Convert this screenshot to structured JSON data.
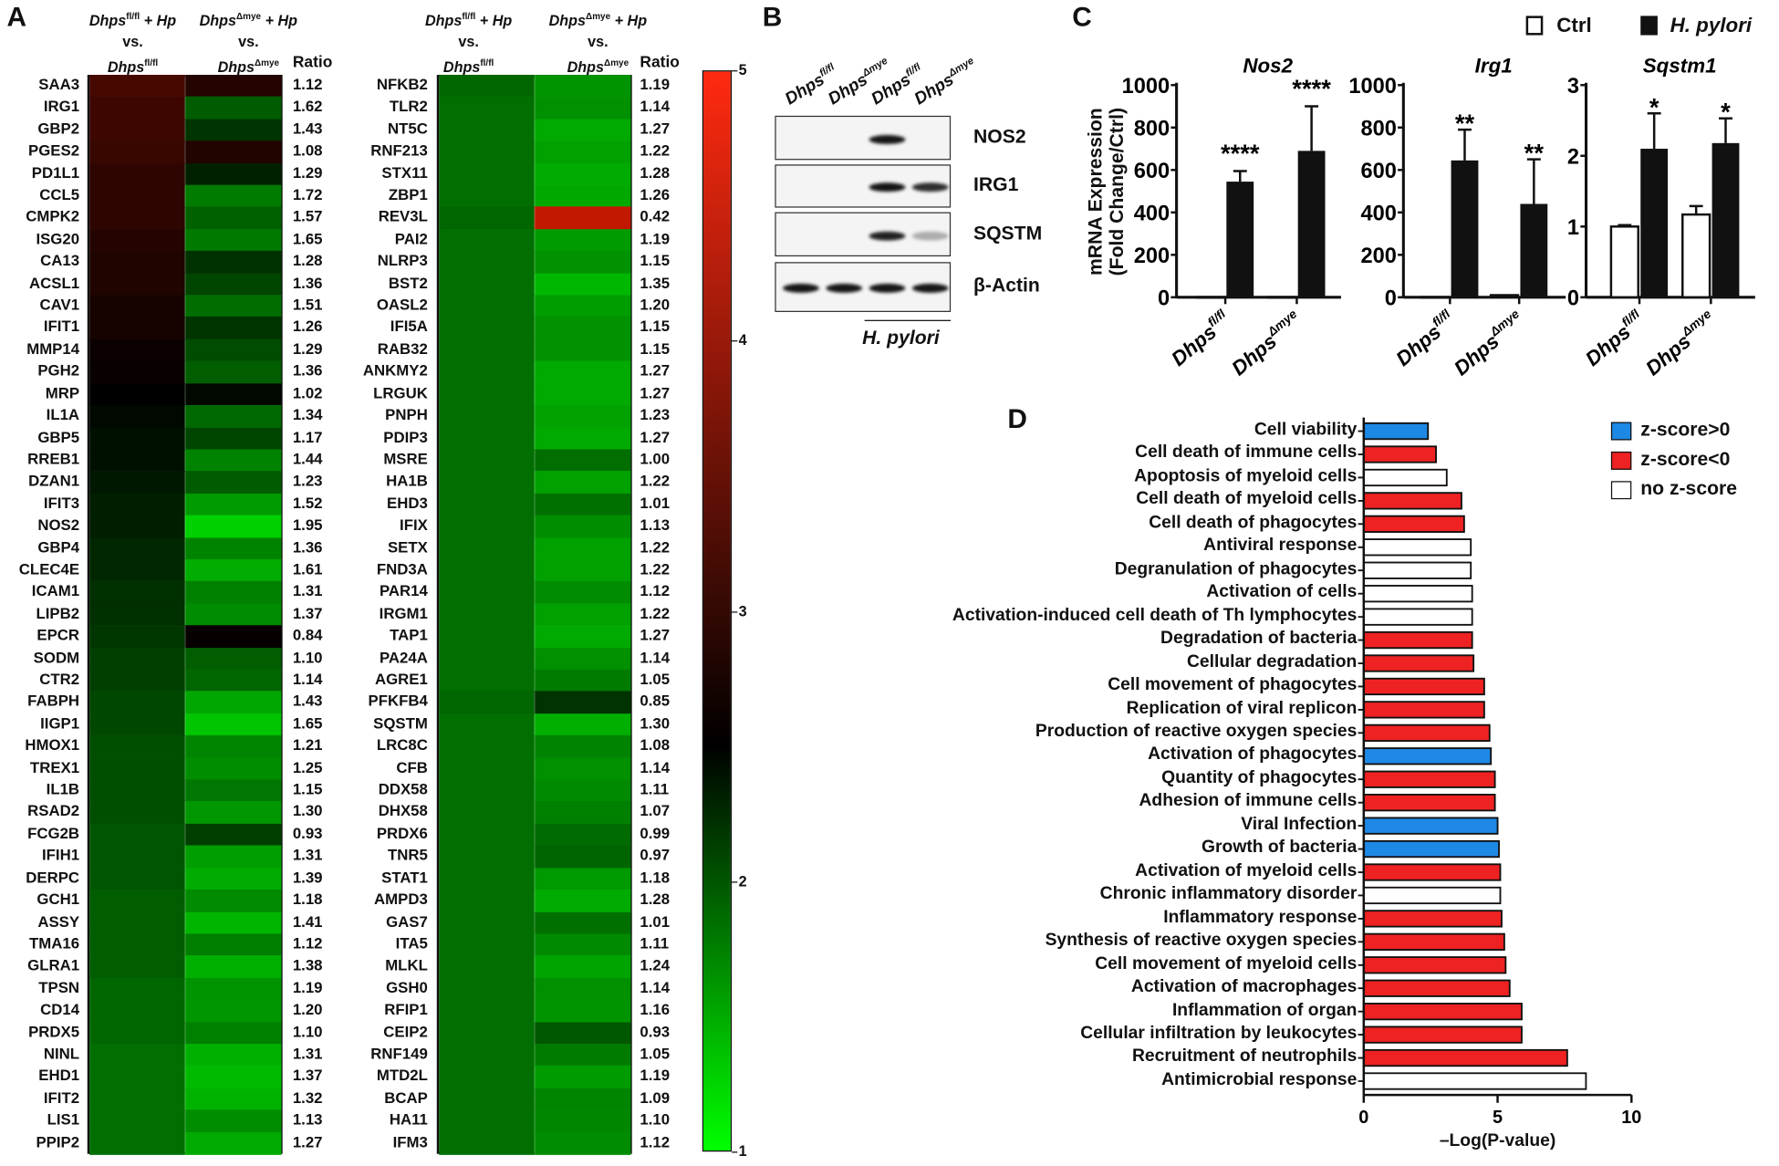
{
  "chart_data": [
    {
      "panel": "A",
      "type": "heatmap",
      "column_headers": [
        {
          "line1_main": "Dhps",
          "line1_sup": "fl/fl",
          "line1_tail": " + Hp",
          "line2": "vs.",
          "line3_main": "Dhps",
          "line3_sup": "fl/fl"
        },
        {
          "line1_main": "Dhps",
          "line1_sup": "Δmye",
          "line1_tail": " + Hp",
          "line2": "vs.",
          "line3_main": "Dhps",
          "line3_sup": "Δmye"
        }
      ],
      "ratio_header": "Ratio",
      "note": "column 2 value = column 1 value / ratio",
      "colorbar": {
        "min": 1,
        "max": 5,
        "ticks": [
          "5",
          "4",
          "3",
          "2",
          "1"
        ],
        "low_color": "#00ff00",
        "mid_color": "#000000",
        "high_color": "#ff2a10",
        "mid_value": 2.5
      },
      "left": {
        "genes": [
          "SAA3",
          "IRG1",
          "GBP2",
          "PGES2",
          "PD1L1",
          "CCL5",
          "CMPK2",
          "ISG20",
          "CA13",
          "ACSL1",
          "CAV1",
          "IFIT1",
          "MMP14",
          "PGH2",
          "MRP",
          "IL1A",
          "GBP5",
          "RREB1",
          "DZAN1",
          "IFIT3",
          "NOS2",
          "GBP4",
          "CLEC4E",
          "ICAM1",
          "LIPB2",
          "EPCR",
          "SODM",
          "CTR2",
          "FABPH",
          "IIGP1",
          "HMOX1",
          "TREX1",
          "IL1B",
          "RSAD2",
          "FCG2B",
          "IFIH1",
          "DERPC",
          "GCH1",
          "ASSY",
          "TMA16",
          "GLRA1",
          "TPSN",
          "CD14",
          "PRDX5",
          "NINL",
          "EHD1",
          "IFIT2",
          "LIS1",
          "PPIP2"
        ],
        "ratios": [
          "1.12",
          "1.62",
          "1.43",
          "1.08",
          "1.29",
          "1.72",
          "1.57",
          "1.65",
          "1.28",
          "1.36",
          "1.51",
          "1.26",
          "1.29",
          "1.36",
          "1.02",
          "1.34",
          "1.17",
          "1.44",
          "1.23",
          "1.52",
          "1.95",
          "1.36",
          "1.61",
          "1.31",
          "1.37",
          "0.84",
          "1.10",
          "1.14",
          "1.43",
          "1.65",
          "1.21",
          "1.25",
          "1.15",
          "1.30",
          "0.93",
          "1.31",
          "1.39",
          "1.18",
          "1.41",
          "1.12",
          "1.38",
          "1.19",
          "1.20",
          "1.10",
          "1.31",
          "1.37",
          "1.32",
          "1.13",
          "1.27"
        ],
        "col1_values": [
          3.2,
          3.1,
          3.1,
          3.05,
          2.95,
          2.95,
          2.95,
          2.85,
          2.8,
          2.8,
          2.72,
          2.72,
          2.6,
          2.58,
          2.5,
          2.45,
          2.4,
          2.4,
          2.35,
          2.3,
          2.3,
          2.25,
          2.25,
          2.2,
          2.2,
          2.15,
          2.1,
          2.1,
          2.05,
          2.05,
          2.0,
          2.0,
          2.0,
          2.0,
          1.95,
          1.95,
          1.95,
          1.9,
          1.9,
          1.9,
          1.9,
          1.85,
          1.85,
          1.85,
          1.8,
          1.8,
          1.8,
          1.8,
          1.8
        ]
      },
      "right": {
        "genes": [
          "NFKB2",
          "TLR2",
          "NT5C",
          "RNF213",
          "STX11",
          "ZBP1",
          "REV3L",
          "PAI2",
          "NLRP3",
          "BST2",
          "OASL2",
          "IFI5A",
          "RAB32",
          "ANKMY2",
          "LRGUK",
          "PNPH",
          "PDIP3",
          "MSRE",
          "HA1B",
          "EHD3",
          "IFIX",
          "SETX",
          "FND3A",
          "PAR14",
          "IRGM1",
          "TAP1",
          "PA24A",
          "AGRE1",
          "PFKFB4",
          "SQSTM",
          "LRC8C",
          "CFB",
          "DDX58",
          "DHX58",
          "PRDX6",
          "TNR5",
          "STAT1",
          "AMPD3",
          "GAS7",
          "ITA5",
          "MLKL",
          "GSH0",
          "RFIP1",
          "CEIP2",
          "RNF149",
          "MTD2L",
          "BCAP",
          "HA11",
          "IFM3"
        ],
        "ratios": [
          "1.19",
          "1.14",
          "1.27",
          "1.22",
          "1.28",
          "1.26",
          "0.42",
          "1.19",
          "1.15",
          "1.35",
          "1.20",
          "1.15",
          "1.15",
          "1.27",
          "1.27",
          "1.23",
          "1.27",
          "1.00",
          "1.22",
          "1.01",
          "1.13",
          "1.22",
          "1.22",
          "1.12",
          "1.22",
          "1.27",
          "1.14",
          "1.05",
          "0.85",
          "1.30",
          "1.08",
          "1.14",
          "1.11",
          "1.07",
          "0.99",
          "0.97",
          "1.18",
          "1.28",
          "1.01",
          "1.11",
          "1.24",
          "1.14",
          "1.16",
          "0.93",
          "1.05",
          "1.19",
          "1.09",
          "1.10",
          "1.12"
        ],
        "col1_values": [
          1.85,
          1.8,
          1.8,
          1.8,
          1.8,
          1.8,
          1.85,
          1.8,
          1.8,
          1.8,
          1.8,
          1.8,
          1.8,
          1.8,
          1.8,
          1.8,
          1.8,
          1.8,
          1.8,
          1.8,
          1.8,
          1.8,
          1.8,
          1.8,
          1.8,
          1.8,
          1.8,
          1.8,
          1.85,
          1.8,
          1.8,
          1.8,
          1.8,
          1.8,
          1.8,
          1.8,
          1.8,
          1.8,
          1.8,
          1.8,
          1.8,
          1.8,
          1.8,
          1.8,
          1.8,
          1.8,
          1.8,
          1.8,
          1.8
        ]
      }
    },
    {
      "panel": "B",
      "type": "western_blot",
      "lanes": [
        {
          "main": "Dhps",
          "sup": "fl/fl"
        },
        {
          "main": "Dhps",
          "sup": "Δmye"
        },
        {
          "main": "Dhps",
          "sup": "fl/fl"
        },
        {
          "main": "Dhps",
          "sup": "Δmye"
        }
      ],
      "treatment_label": "H. pylori",
      "rows": [
        {
          "label": "NOS2",
          "intensities": [
            0,
            0,
            0.95,
            0
          ]
        },
        {
          "label": "IRG1",
          "intensities": [
            0,
            0,
            0.95,
            0.85
          ]
        },
        {
          "label": "SQSTM",
          "intensities": [
            0,
            0,
            0.9,
            0.3
          ]
        },
        {
          "label": "β-Actin",
          "intensities": [
            0.95,
            0.95,
            0.95,
            0.95
          ]
        }
      ]
    },
    {
      "panel": "C",
      "type": "bar",
      "ylabel_line1": "mRNA Expression",
      "ylabel_line2": "(Fold Change/Ctrl)",
      "legend": [
        {
          "label": "Ctrl",
          "color": "#ffffff"
        },
        {
          "label": "H. pylori",
          "color": "#000000"
        }
      ],
      "categories": [
        {
          "main": "Dhps",
          "sup": "fl/fl"
        },
        {
          "main": "Dhps",
          "sup": "Δmye"
        }
      ],
      "subplots": [
        {
          "title": "Nos2",
          "ylim": [
            0,
            1000
          ],
          "ticks": [
            "0",
            "200",
            "400",
            "600",
            "800",
            "1000"
          ],
          "tick_values": [
            0,
            200,
            400,
            600,
            800,
            1000
          ],
          "ctrl": [
            1,
            1
          ],
          "ctrl_err": [
            0,
            0
          ],
          "hp": [
            545,
            690
          ],
          "hp_err": [
            50,
            210
          ],
          "sig": [
            "****",
            "****"
          ]
        },
        {
          "title": "Irg1",
          "ylim": [
            0,
            1000
          ],
          "ticks": [
            "0",
            "200",
            "400",
            "600",
            "800",
            "1000"
          ],
          "tick_values": [
            0,
            200,
            400,
            600,
            800,
            1000
          ],
          "ctrl": [
            1,
            10
          ],
          "ctrl_err": [
            0,
            0
          ],
          "hp": [
            645,
            440
          ],
          "hp_err": [
            145,
            210
          ],
          "sig": [
            "**",
            "**"
          ]
        },
        {
          "title": "Sqstm1",
          "ylim": [
            0,
            3
          ],
          "ticks": [
            "0",
            "1",
            "2",
            "3"
          ],
          "tick_values": [
            0,
            1,
            2,
            3
          ],
          "ctrl": [
            1.0,
            1.17
          ],
          "ctrl_err": [
            0.02,
            0.12
          ],
          "hp": [
            2.1,
            2.18
          ],
          "hp_err": [
            0.5,
            0.35
          ],
          "sig": [
            "*",
            "*"
          ]
        }
      ]
    },
    {
      "panel": "D",
      "type": "bar",
      "orientation": "horizontal",
      "xlabel": "–Log(P-value)",
      "xlim": [
        0,
        10
      ],
      "xticks": [
        "0",
        "5",
        "10"
      ],
      "legend": [
        {
          "label": "z-score>0",
          "color": "#1e88e5"
        },
        {
          "label": "z-score<0",
          "color": "#ee2222"
        },
        {
          "label": "no z-score",
          "color": "#ffffff"
        }
      ],
      "categories": [
        "Cell viability",
        "Cell death of immune cells",
        "Apoptosis of myeloid cells",
        "Cell death of myeloid cells",
        "Cell death of phagocytes",
        "Antiviral response",
        "Degranulation of phagocytes",
        "Activation of cells",
        "Activation-induced cell death of Th lymphocytes",
        "Degradation of bacteria",
        "Cellular degradation",
        "Cell movement of phagocytes",
        "Replication of viral replicon",
        "Production of reactive oxygen species",
        "Activation of phagocytes",
        "Quantity of phagocytes",
        "Adhesion of immune cells",
        "Viral Infection",
        "Growth of bacteria",
        "Activation of myeloid cells",
        "Chronic inflammatory disorder",
        "Inflammatory response",
        "Synthesis of reactive oxygen species",
        "Cell movement of myeloid cells",
        "Activation of macrophages",
        "Inflammation of organ",
        "Cellular infiltration by leukocytes",
        "Recruitment of neutrophils",
        "Antimicrobial response"
      ],
      "values": [
        2.4,
        2.7,
        3.1,
        3.65,
        3.75,
        4.0,
        4.0,
        4.05,
        4.05,
        4.05,
        4.1,
        4.5,
        4.5,
        4.7,
        4.75,
        4.9,
        4.9,
        5.0,
        5.05,
        5.1,
        5.1,
        5.15,
        5.25,
        5.3,
        5.45,
        5.9,
        5.9,
        7.6,
        8.3
      ],
      "zscore_class": [
        0,
        1,
        2,
        1,
        1,
        2,
        2,
        2,
        2,
        1,
        1,
        1,
        1,
        1,
        0,
        1,
        1,
        0,
        0,
        1,
        2,
        1,
        1,
        1,
        1,
        1,
        1,
        1,
        2
      ]
    }
  ],
  "panel_letters": {
    "a": "A",
    "b": "B",
    "c": "C",
    "d": "D"
  }
}
